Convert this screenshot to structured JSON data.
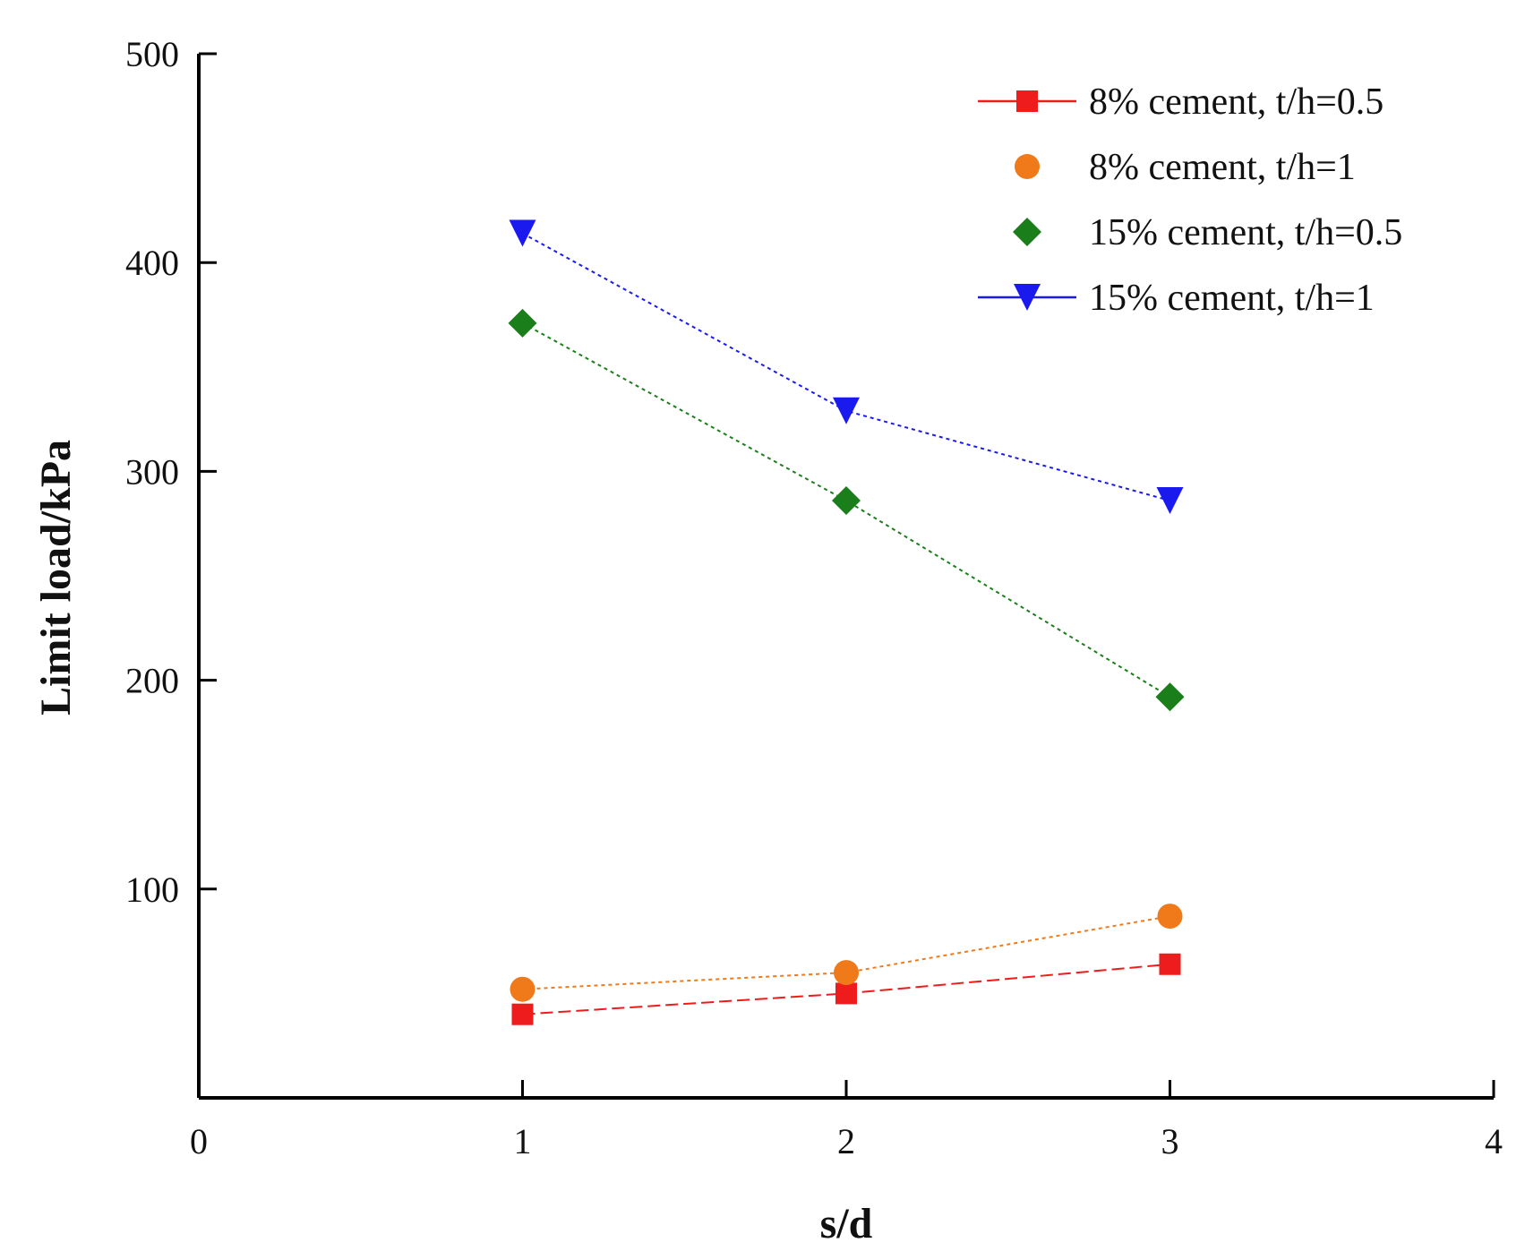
{
  "chart_data": {
    "type": "line",
    "title": "",
    "xlabel": "s/d",
    "ylabel": "Limit load/kPa",
    "xlim": [
      0,
      4
    ],
    "ylim": [
      0,
      500
    ],
    "xticks": [
      "0",
      "1",
      "2",
      "3",
      "4"
    ],
    "yticks": [
      "100",
      "200",
      "300",
      "400",
      "500"
    ],
    "x": [
      1,
      2,
      3
    ],
    "legend_position": "top-right",
    "series": [
      {
        "name": "8% cement, t/h=0.5",
        "values": [
          40,
          50,
          64
        ],
        "color": "#ee1c1c",
        "marker": "square",
        "line": "dash",
        "legend_line": true
      },
      {
        "name": "8% cement, t/h=1",
        "values": [
          52,
          60,
          87
        ],
        "color": "#f07a1a",
        "marker": "circle",
        "line": "dot",
        "legend_line": false
      },
      {
        "name": "15% cement, t/h=0.5",
        "values": [
          371,
          286,
          192
        ],
        "color": "#1a7f1a",
        "marker": "diamond",
        "line": "dot",
        "legend_line": false
      },
      {
        "name": "15% cement, t/h=1",
        "values": [
          414,
          329,
          286
        ],
        "color": "#1a1aee",
        "marker": "triangle-down",
        "line": "dot",
        "legend_line": true
      }
    ]
  }
}
